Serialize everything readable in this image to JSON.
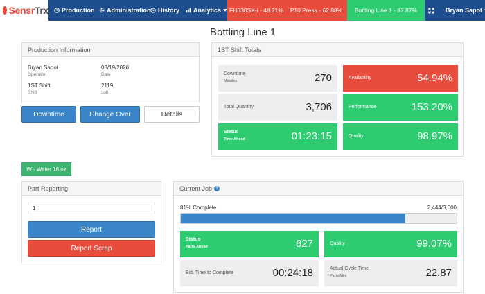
{
  "nav": {
    "logo_main": "Sensr",
    "logo_accent": "Trx",
    "production": "Production",
    "administration": "Administration",
    "history": "History",
    "analytics": "Analytics",
    "lines": [
      {
        "label": "FH630SX-i - 48.21%",
        "status": "red"
      },
      {
        "label": "P10 Press - 62.88%",
        "status": "red"
      },
      {
        "label": "Bottling Line 1 - 87.87%",
        "status": "green"
      }
    ],
    "user": "Bryan Sapot"
  },
  "page_title": "Bottling Line 1",
  "production_info": {
    "heading": "Production Information",
    "operator": "Bryan Sapot",
    "operator_label": "Operator",
    "date": "03/19/2020",
    "date_label": "Date",
    "shift": "1ST Shift",
    "shift_label": "Shift",
    "job": "2119",
    "job_label": "Job"
  },
  "actions": {
    "downtime": "Downtime",
    "changeover": "Change Over",
    "details": "Details"
  },
  "shift_totals": {
    "heading": "1ST Shift Totals",
    "downtime_label": "Downtime",
    "downtime_unit": "Minutes",
    "downtime_value": "270",
    "availability_label": "Availability",
    "availability_value": "54.94%",
    "total_qty_label": "Total Quantity",
    "total_qty_value": "3,706",
    "performance_label": "Performance",
    "performance_value": "153.20%",
    "status_label": "Status",
    "status_sub": "Time Ahead",
    "status_value": "01:23:15",
    "quality_label": "Quality",
    "quality_value": "98.97%"
  },
  "job_tag": "W - Water 16 oz",
  "part_reporting": {
    "heading": "Part Reporting",
    "quantity_value": "1",
    "report": "Report",
    "report_scrap": "Report Scrap"
  },
  "current_job": {
    "heading": "Current Job",
    "help": "?",
    "complete_text": "81% Complete",
    "progress_fraction": 0.8147,
    "count_text": "2,444/3,000",
    "status_label": "Status",
    "status_sub": "Parts Ahead",
    "status_value": "827",
    "quality_label": "Quality",
    "quality_value": "99.07%",
    "est_label": "Est. Time to Complete",
    "est_value": "00:24:18",
    "cycle_label": "Actual Cycle Time",
    "cycle_sub": "Parts/Min.",
    "cycle_value": "22.87"
  },
  "colors": {
    "navbar": "#1f4e8f",
    "red": "#e74c3c",
    "green": "#2ecc71",
    "blue": "#3a86c8"
  }
}
